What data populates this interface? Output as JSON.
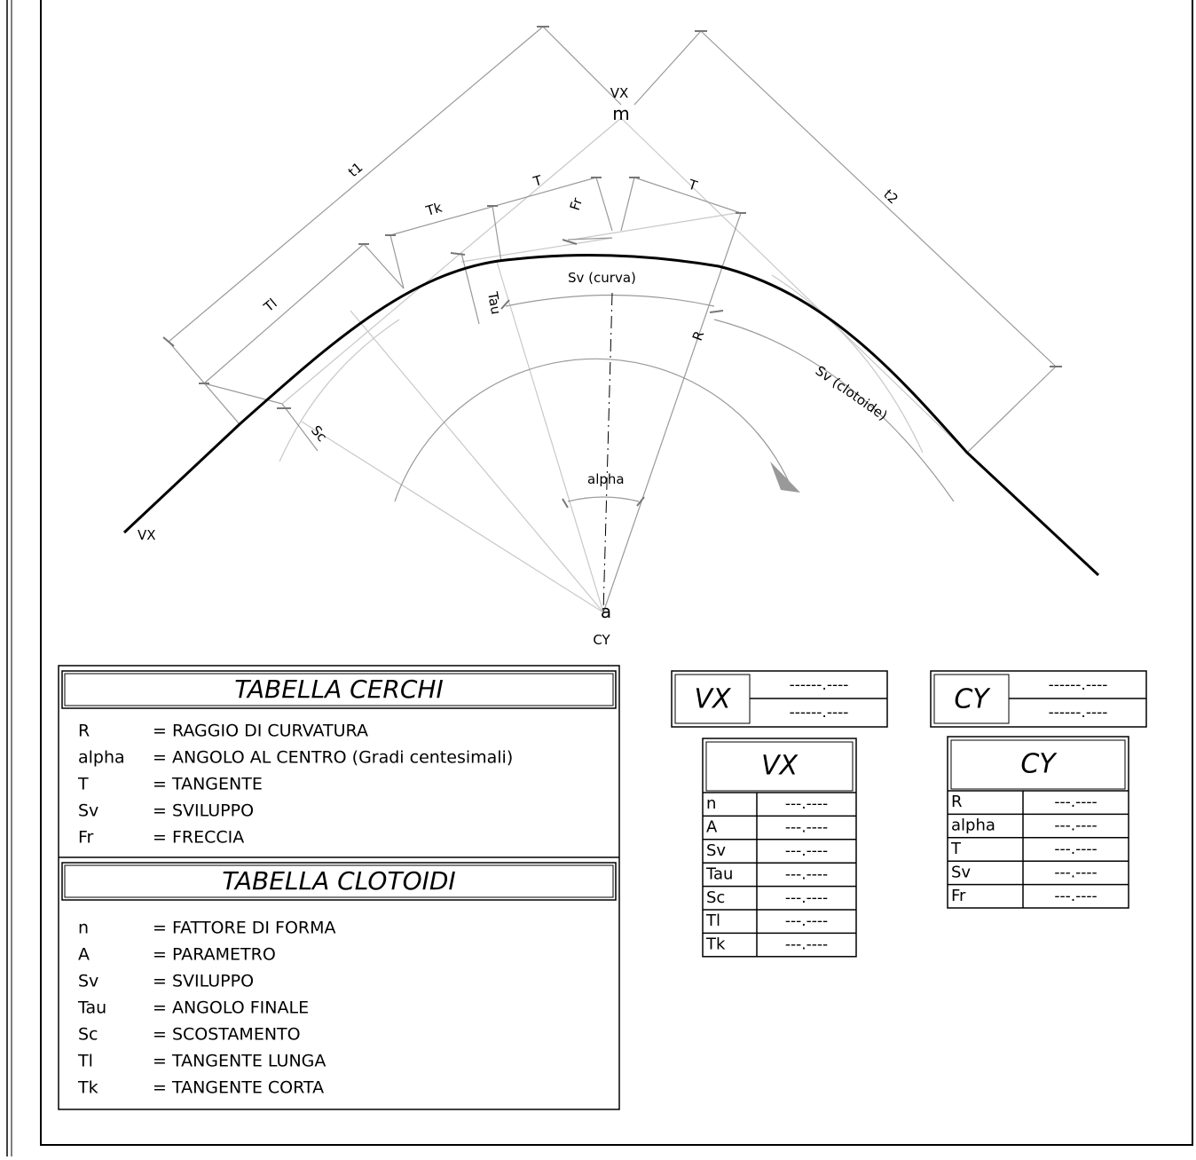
{
  "drawing": {
    "labels": [
      "VX",
      "m",
      "t1",
      "t2",
      "Tk",
      "T",
      "T",
      "Fr",
      "Tl",
      "Tau",
      "Sv (curva)",
      "R",
      "Sv (clotoide)",
      "Sc",
      "alpha",
      "VX",
      "a",
      "CY"
    ]
  },
  "circle_table": {
    "title": "TABELLA CERCHI",
    "rows": [
      [
        "R",
        "= RAGGIO DI CURVATURA"
      ],
      [
        "alpha",
        "= ANGOLO AL CENTRO (Gradi centesimali)"
      ],
      [
        "T",
        "= TANGENTE"
      ],
      [
        "Sv",
        "= SVILUPPO"
      ],
      [
        "Fr",
        "= FRECCIA"
      ]
    ]
  },
  "clothoid_table": {
    "title": "TABELLA CLOTOIDI",
    "rows": [
      [
        "n",
        "= FATTORE DI FORMA"
      ],
      [
        "A",
        "= PARAMETRO"
      ],
      [
        "Sv",
        "= SVILUPPO"
      ],
      [
        "Tau",
        "= ANGOLO FINALE"
      ],
      [
        "Sc",
        "= SCOSTAMENTO"
      ],
      [
        "Tl",
        "= TANGENTE LUNGA"
      ],
      [
        "Tk",
        "= TANGENTE CORTA"
      ]
    ]
  },
  "vx_header": {
    "label": "VX",
    "values": [
      "------.----",
      "------.----"
    ]
  },
  "cy_header": {
    "label": "CY",
    "values": [
      "------.----",
      "------.----"
    ]
  },
  "vx_table": {
    "title": "VX",
    "rows": [
      [
        "n",
        "---.----"
      ],
      [
        "A",
        "---.----"
      ],
      [
        "Sv",
        "---.----"
      ],
      [
        "Tau",
        "---.----"
      ],
      [
        "Sc",
        "---.----"
      ],
      [
        "Tl",
        "---.----"
      ],
      [
        "Tk",
        "---.----"
      ]
    ]
  },
  "cy_table": {
    "title": "CY",
    "rows": [
      [
        "R",
        "---.----"
      ],
      [
        "alpha",
        "---.----"
      ],
      [
        "T",
        "---.----"
      ],
      [
        "Sv",
        "---.----"
      ],
      [
        "Fr",
        "---.----"
      ]
    ]
  }
}
